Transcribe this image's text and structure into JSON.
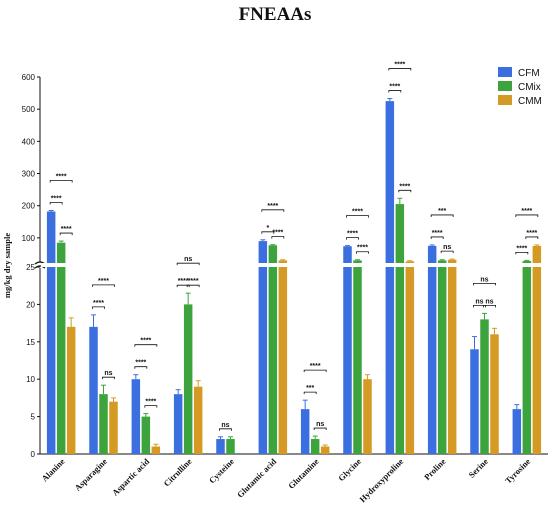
{
  "chart_data": {
    "type": "bar",
    "title": "FNEAAs",
    "ylabel": "mg/kg dry sample",
    "categories": [
      "Alanine",
      "Asparagine",
      "Aspartic acid",
      "Citrulline",
      "Cysteine",
      "Glutamic acid",
      "Glutamine",
      "Glycine",
      "Hydroxyproline",
      "Proline",
      "Serine",
      "Tyrosine"
    ],
    "series": [
      {
        "name": "CFM",
        "color": "#3b6fe0",
        "values": [
          182,
          17,
          10,
          8,
          2,
          90,
          6,
          74,
          525,
          75,
          14,
          6
        ],
        "errors": [
          3,
          1.6,
          0.6,
          0.6,
          0.3,
          4,
          1.2,
          2,
          8,
          3,
          1.7,
          0.6
        ]
      },
      {
        "name": "CMix",
        "color": "#3da33d",
        "values": [
          85,
          8,
          5,
          20,
          2,
          77,
          2,
          30,
          205,
          30,
          18,
          28
        ],
        "errors": [
          5,
          1.2,
          0.4,
          1.5,
          0.3,
          2,
          0.4,
          2,
          18,
          2,
          0.8,
          2
        ]
      },
      {
        "name": "CMM",
        "color": "#d49a24",
        "values": [
          17,
          7,
          1,
          9,
          0,
          30,
          1,
          10,
          27,
          32,
          16,
          75
        ],
        "errors": [
          1.2,
          0.5,
          0.3,
          0.8,
          0,
          2,
          0.2,
          0.6,
          2,
          2,
          0.8,
          3
        ]
      }
    ],
    "y_axis": {
      "broken": true,
      "lower_range": [
        0,
        25
      ],
      "lower_ticks": [
        0,
        5,
        10,
        15,
        20,
        25
      ],
      "upper_range": [
        25,
        600
      ],
      "upper_ticks": [
        100,
        200,
        300,
        400,
        500,
        600
      ]
    },
    "significance": [
      {
        "category": "Alanine",
        "brackets": [
          {
            "pair": "CFM-CMix",
            "label": "****"
          },
          {
            "pair": "CMix-CMM",
            "label": "****"
          },
          {
            "pair": "CFM-CMM",
            "label": "****"
          }
        ]
      },
      {
        "category": "Asparagine",
        "brackets": [
          {
            "pair": "CFM-CMix",
            "label": "****"
          },
          {
            "pair": "CMix-CMM",
            "label": "ns"
          },
          {
            "pair": "CFM-CMM",
            "label": "****"
          }
        ]
      },
      {
        "category": "Aspartic acid",
        "brackets": [
          {
            "pair": "CFM-CMix",
            "label": "****"
          },
          {
            "pair": "CMix-CMM",
            "label": "****"
          },
          {
            "pair": "CFM-CMM",
            "label": "****"
          }
        ]
      },
      {
        "category": "Citrulline",
        "brackets": [
          {
            "pair": "CFM-CMix",
            "label": "****"
          },
          {
            "pair": "CMix-CMM",
            "label": "****"
          },
          {
            "pair": "CFM-CMM",
            "label": "ns"
          }
        ]
      },
      {
        "category": "Cysteine",
        "brackets": [
          {
            "pair": "CFM-CMix",
            "label": "ns"
          }
        ]
      },
      {
        "category": "Glutamic acid",
        "brackets": [
          {
            "pair": "CFM-CMix",
            "label": "*"
          },
          {
            "pair": "CMix-CMM",
            "label": "****"
          },
          {
            "pair": "CFM-CMM",
            "label": "****"
          }
        ]
      },
      {
        "category": "Glutamine",
        "brackets": [
          {
            "pair": "CFM-CMix",
            "label": "***"
          },
          {
            "pair": "CMix-CMM",
            "label": "ns"
          },
          {
            "pair": "CFM-CMM",
            "label": "****"
          }
        ]
      },
      {
        "category": "Glycine",
        "brackets": [
          {
            "pair": "CFM-CMix",
            "label": "****"
          },
          {
            "pair": "CMix-CMM",
            "label": "****"
          },
          {
            "pair": "CFM-CMM",
            "label": "****"
          }
        ]
      },
      {
        "category": "Hydroxyproline",
        "brackets": [
          {
            "pair": "CFM-CMix",
            "label": "****"
          },
          {
            "pair": "CMix-CMM",
            "label": "****"
          },
          {
            "pair": "CFM-CMM",
            "label": "****"
          }
        ]
      },
      {
        "category": "Proline",
        "brackets": [
          {
            "pair": "CFM-CMix",
            "label": "****"
          },
          {
            "pair": "CMix-CMM",
            "label": "ns"
          },
          {
            "pair": "CFM-CMM",
            "label": "***"
          }
        ]
      },
      {
        "category": "Serine",
        "brackets": [
          {
            "pair": "CFM-CMix",
            "label": "ns"
          },
          {
            "pair": "CMix-CMM",
            "label": "ns"
          },
          {
            "pair": "CFM-CMM",
            "label": "ns"
          }
        ]
      },
      {
        "category": "Tyrosine",
        "brackets": [
          {
            "pair": "CFM-CMix",
            "label": "****"
          },
          {
            "pair": "CMix-CMM",
            "label": "****"
          },
          {
            "pair": "CFM-CMM",
            "label": "****"
          }
        ]
      }
    ],
    "legend_position": "top-right",
    "grid": false
  }
}
